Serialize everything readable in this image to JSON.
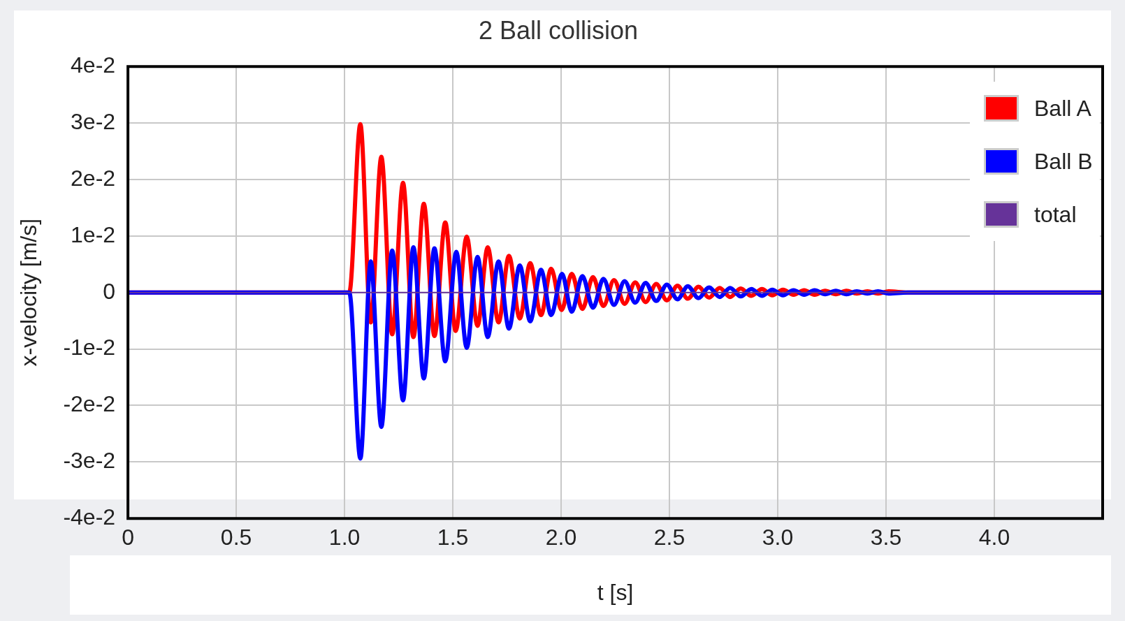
{
  "chart_data": {
    "type": "line",
    "title": "2 Ball collision",
    "xlabel": "t [s]",
    "ylabel": "x-velocity [m/s]",
    "xlim": [
      0,
      4.5
    ],
    "xticks": [
      0,
      0.5,
      {
        "value": 1,
        "label": "1.0"
      },
      1.5,
      {
        "value": 2,
        "label": "2.0"
      },
      2.5,
      {
        "value": 3,
        "label": "3.0"
      },
      3.5,
      {
        "value": 4,
        "label": "4.0"
      }
    ],
    "ylim": [
      -0.04,
      0.04
    ],
    "yticks": [
      {
        "value": -0.04,
        "label": "-4e-2"
      },
      {
        "value": -0.03,
        "label": "-3e-2"
      },
      {
        "value": -0.02,
        "label": "-2e-2"
      },
      {
        "value": -0.01,
        "label": "-1e-2"
      },
      0,
      {
        "value": 0.01,
        "label": "1e-2"
      },
      {
        "value": 0.02,
        "label": "2e-2"
      },
      {
        "value": 0.03,
        "label": "3e-2"
      },
      {
        "value": 0.04,
        "label": "4e-2"
      }
    ],
    "grid": true,
    "legend": "top right",
    "marker": "none",
    "line_style": "solid",
    "series": [
      {
        "name": "Ball A",
        "color": "#ff0000",
        "x": [
          0,
          1.022,
          1.073,
          1.121,
          1.17,
          1.22,
          1.27,
          1.318,
          1.366,
          1.415,
          1.465,
          1.513,
          1.564,
          1.614,
          1.661,
          1.711,
          1.759,
          1.809,
          1.857,
          1.907,
          1.954,
          2.002,
          2.049,
          2.098,
          2.147,
          2.195,
          2.244,
          2.293,
          2.342,
          2.39,
          2.439,
          2.488,
          2.537,
          2.585,
          2.634,
          2.683,
          2.732,
          2.78,
          2.829,
          2.878,
          2.927,
          2.975,
          3.024,
          3.073,
          3.122,
          3.17,
          3.219,
          3.268,
          3.317,
          3.365,
          3.414,
          3.463,
          3.512,
          3.6,
          4.5
        ],
        "values": [
          0,
          0,
          0.0298,
          -0.0053,
          0.024,
          -0.0074,
          0.0194,
          -0.0079,
          0.0157,
          -0.0077,
          0.0124,
          -0.0068,
          0.0099,
          -0.0059,
          0.008,
          -0.0053,
          0.0065,
          -0.0046,
          0.0052,
          -0.004,
          0.0042,
          -0.0031,
          0.0033,
          -0.0029,
          0.0027,
          -0.0024,
          0.0022,
          -0.002,
          0.0018,
          -0.0017,
          0.0015,
          -0.0014,
          0.0012,
          -0.0011,
          0.001,
          -0.0009,
          0.0008,
          -0.0008,
          0.0007,
          -0.0006,
          0.0006,
          -0.0005,
          0.0005,
          -0.0004,
          0.0004,
          -0.0004,
          0.0003,
          -0.0003,
          0.0003,
          -0.0002,
          0.0002,
          -0.0002,
          0.0002,
          0,
          0
        ]
      },
      {
        "name": "Ball B",
        "color": "#0000ff",
        "x": [
          0,
          1.022,
          1.073,
          1.121,
          1.17,
          1.22,
          1.27,
          1.318,
          1.366,
          1.415,
          1.465,
          1.516,
          1.564,
          1.614,
          1.661,
          1.711,
          1.759,
          1.809,
          1.857,
          1.907,
          1.954,
          2.004,
          2.049,
          2.098,
          2.147,
          2.195,
          2.244,
          2.293,
          2.342,
          2.39,
          2.439,
          2.488,
          2.537,
          2.585,
          2.634,
          2.683,
          2.732,
          2.78,
          2.829,
          2.878,
          2.927,
          2.975,
          3.024,
          3.073,
          3.122,
          3.17,
          3.219,
          3.268,
          3.317,
          3.365,
          3.414,
          3.463,
          3.512,
          3.6,
          4.5
        ],
        "values": [
          0,
          0,
          -0.0294,
          0.0055,
          -0.0238,
          0.0074,
          -0.0191,
          0.008,
          -0.0152,
          0.0078,
          -0.0122,
          0.0072,
          -0.0098,
          0.0063,
          -0.0079,
          0.0055,
          -0.0064,
          0.0048,
          -0.0051,
          0.004,
          -0.004,
          0.0033,
          -0.0034,
          0.0029,
          -0.0027,
          0.0024,
          -0.0022,
          0.002,
          -0.0018,
          0.0017,
          -0.0015,
          0.0014,
          -0.0012,
          0.0011,
          -0.001,
          0.0009,
          -0.0008,
          0.0008,
          -0.0007,
          0.0006,
          -0.0006,
          0.0005,
          -0.0005,
          0.0004,
          -0.0004,
          0.0004,
          -0.0003,
          0.0003,
          -0.0003,
          0.0002,
          -0.0002,
          0.0002,
          -0.0002,
          0,
          0
        ]
      },
      {
        "name": "total",
        "color": "#663399",
        "x": [
          0,
          4.5
        ],
        "values": [
          0,
          0
        ]
      }
    ]
  }
}
